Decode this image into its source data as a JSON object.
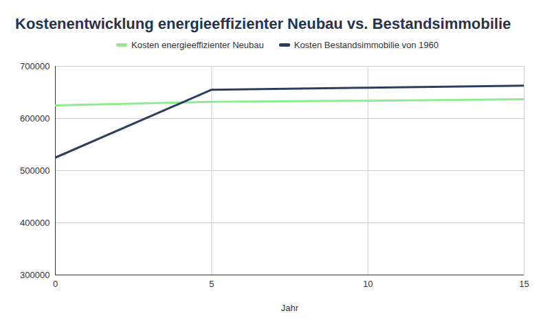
{
  "chart_data": {
    "type": "line",
    "title": "Kostenentwicklung energieeffizienter Neubau vs. Bestandsimmobilie",
    "x_label": "Jahr",
    "x": [
      0,
      5,
      10,
      15
    ],
    "series": [
      {
        "name": "Kosten energieeffizienter Neubau",
        "color": "#8eec8e",
        "values": [
          625000,
          632000,
          634000,
          637000
        ]
      },
      {
        "name": "Kosten Bestandsimmobilie von 1960",
        "color": "#2d3d5f",
        "values": [
          525000,
          655000,
          659000,
          663000
        ]
      }
    ],
    "xlim": [
      0,
      15
    ],
    "xticks": [
      0,
      5,
      10,
      15
    ],
    "ylim": [
      300000,
      700000
    ],
    "yticks": [
      300000,
      400000,
      500000,
      600000,
      700000
    ],
    "grid": true,
    "legend": "top"
  }
}
